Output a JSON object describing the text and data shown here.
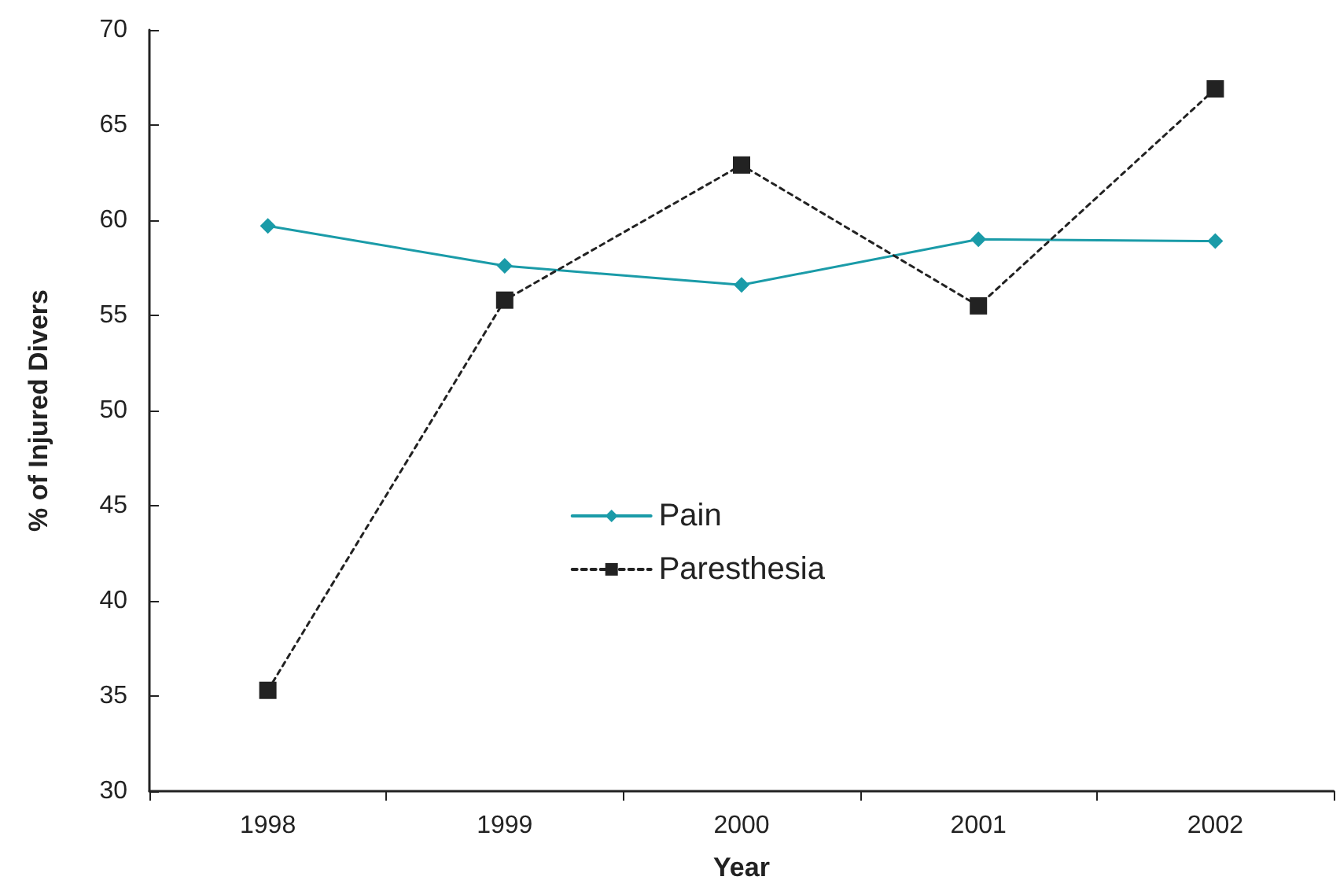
{
  "chart_data": {
    "type": "line",
    "xlabel": "Year",
    "ylabel": "% of Injured Divers",
    "categories": [
      "1998",
      "1999",
      "2000",
      "2001",
      "2002"
    ],
    "series": [
      {
        "name": "Pain",
        "color": "#1a9ba8",
        "marker": "diamond",
        "line_style": "solid",
        "values": [
          59.7,
          57.6,
          56.6,
          59.0,
          58.9
        ]
      },
      {
        "name": "Paresthesia",
        "color": "#222222",
        "marker": "square",
        "line_style": "dotted",
        "values": [
          35.3,
          55.8,
          62.9,
          55.5,
          66.9
        ]
      }
    ],
    "ylim": [
      30,
      70
    ],
    "yticks": [
      30,
      35,
      40,
      45,
      50,
      55,
      60,
      65,
      70
    ],
    "grid": false,
    "legend": "center"
  }
}
